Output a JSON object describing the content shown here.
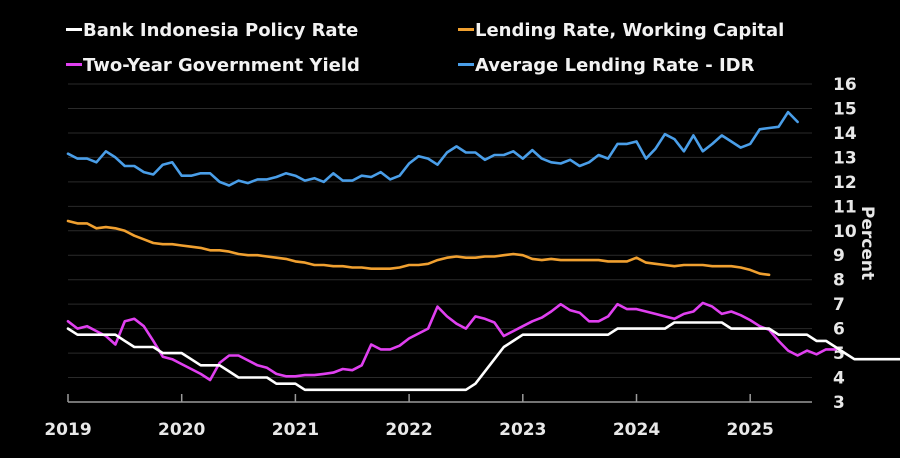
{
  "chart_data": {
    "type": "line",
    "title": "",
    "xlabel": "",
    "ylabel": "Percent",
    "ylim": [
      3,
      16
    ],
    "xlim": [
      "2019-01",
      "2025-08"
    ],
    "grid": true,
    "legend_position": "top",
    "x_ticks": [
      "2019",
      "2020",
      "2021",
      "2022",
      "2023",
      "2024",
      "2025"
    ],
    "y_ticks": [
      "3",
      "4",
      "5",
      "6",
      "7",
      "8",
      "9",
      "10",
      "11",
      "12",
      "13",
      "14",
      "15",
      "16"
    ],
    "x_start": "2019-01",
    "frequency": "monthly",
    "series": [
      {
        "name": "Bank Indonesia Policy Rate",
        "color": "#ffffff",
        "values": [
          6.0,
          5.75,
          5.75,
          5.75,
          5.75,
          5.75,
          5.5,
          5.25,
          5.25,
          5.25,
          5.0,
          5.0,
          5.0,
          4.75,
          4.5,
          4.5,
          4.5,
          4.25,
          4.0,
          4.0,
          4.0,
          4.0,
          3.75,
          3.75,
          3.75,
          3.5,
          3.5,
          3.5,
          3.5,
          3.5,
          3.5,
          3.5,
          3.5,
          3.5,
          3.5,
          3.5,
          3.5,
          3.5,
          3.5,
          3.5,
          3.5,
          3.5,
          3.5,
          3.75,
          4.25,
          4.75,
          5.25,
          5.5,
          5.75,
          5.75,
          5.75,
          5.75,
          5.75,
          5.75,
          5.75,
          5.75,
          5.75,
          5.75,
          6.0,
          6.0,
          6.0,
          6.0,
          6.0,
          6.0,
          6.25,
          6.25,
          6.25,
          6.25,
          6.25,
          6.25,
          6.0,
          6.0,
          6.0,
          6.0,
          6.0,
          5.75,
          5.75,
          5.75,
          5.75,
          5.5,
          5.5,
          5.25,
          5.0,
          4.75,
          4.75,
          4.75,
          4.75,
          4.75,
          4.75
        ],
        "values_note": "first point Jan 2019"
      },
      {
        "name": "Lending Rate, Working Capital",
        "color": "#f0a030",
        "values": [
          10.4,
          10.3,
          10.3,
          10.1,
          10.15,
          10.1,
          10.0,
          9.8,
          9.65,
          9.5,
          9.45,
          9.45,
          9.4,
          9.35,
          9.3,
          9.2,
          9.2,
          9.15,
          9.05,
          9.0,
          9.0,
          8.95,
          8.9,
          8.85,
          8.75,
          8.7,
          8.6,
          8.6,
          8.55,
          8.55,
          8.5,
          8.5,
          8.45,
          8.45,
          8.45,
          8.5,
          8.6,
          8.6,
          8.65,
          8.8,
          8.9,
          8.95,
          8.9,
          8.9,
          8.95,
          8.95,
          9.0,
          9.05,
          9.0,
          8.85,
          8.8,
          8.85,
          8.8,
          8.8,
          8.8,
          8.8,
          8.8,
          8.75,
          8.75,
          8.75,
          8.9,
          8.7,
          8.65,
          8.6,
          8.55,
          8.6,
          8.6,
          8.6,
          8.55,
          8.55,
          8.55,
          8.5,
          8.4,
          8.25,
          8.2
        ]
      },
      {
        "name": "Two-Year Government Yield",
        "color": "#e040f0",
        "values": [
          6.3,
          6.0,
          6.1,
          5.9,
          5.7,
          5.35,
          6.3,
          6.4,
          6.1,
          5.5,
          4.85,
          4.75,
          4.55,
          4.35,
          4.15,
          3.9,
          4.6,
          4.9,
          4.9,
          4.7,
          4.5,
          4.4,
          4.15,
          4.05,
          4.05,
          4.1,
          4.1,
          4.15,
          4.2,
          4.35,
          4.3,
          4.5,
          5.35,
          5.15,
          5.15,
          5.3,
          5.6,
          5.8,
          6.0,
          6.9,
          6.5,
          6.2,
          6.0,
          6.5,
          6.4,
          6.25,
          5.7,
          5.9,
          6.1,
          6.3,
          6.45,
          6.7,
          7.0,
          6.75,
          6.65,
          6.3,
          6.3,
          6.5,
          7.0,
          6.8,
          6.8,
          6.7,
          6.6,
          6.5,
          6.4,
          6.6,
          6.7,
          7.05,
          6.9,
          6.6,
          6.7,
          6.55,
          6.35,
          6.1,
          5.95,
          5.5,
          5.1,
          4.9,
          5.1,
          4.95,
          5.15,
          5.15
        ]
      },
      {
        "name": "Average Lending Rate - IDR",
        "color": "#4a9ee8",
        "values": [
          13.15,
          12.95,
          12.95,
          12.8,
          13.25,
          13.0,
          12.65,
          12.65,
          12.4,
          12.3,
          12.7,
          12.8,
          12.25,
          12.25,
          12.35,
          12.35,
          12.0,
          11.85,
          12.05,
          11.95,
          12.1,
          12.1,
          12.2,
          12.35,
          12.25,
          12.05,
          12.15,
          12.0,
          12.35,
          12.05,
          12.05,
          12.25,
          12.2,
          12.4,
          12.1,
          12.25,
          12.75,
          13.05,
          12.95,
          12.7,
          13.2,
          13.45,
          13.2,
          13.2,
          12.9,
          13.1,
          13.1,
          13.25,
          12.95,
          13.3,
          12.95,
          12.8,
          12.75,
          12.9,
          12.65,
          12.8,
          13.1,
          12.95,
          13.55,
          13.55,
          13.65,
          12.95,
          13.35,
          13.95,
          13.75,
          13.25,
          13.9,
          13.25,
          13.55,
          13.9,
          13.65,
          13.4,
          13.55,
          14.15,
          14.2,
          14.25,
          14.85,
          14.45
        ]
      }
    ]
  },
  "legend": [
    {
      "label": "Bank Indonesia Policy Rate",
      "color": "#ffffff"
    },
    {
      "label": "Lending Rate, Working Capital",
      "color": "#f0a030"
    },
    {
      "label": "Two-Year Government Yield",
      "color": "#e040f0"
    },
    {
      "label": "Average Lending Rate - IDR",
      "color": "#4a9ee8"
    }
  ]
}
